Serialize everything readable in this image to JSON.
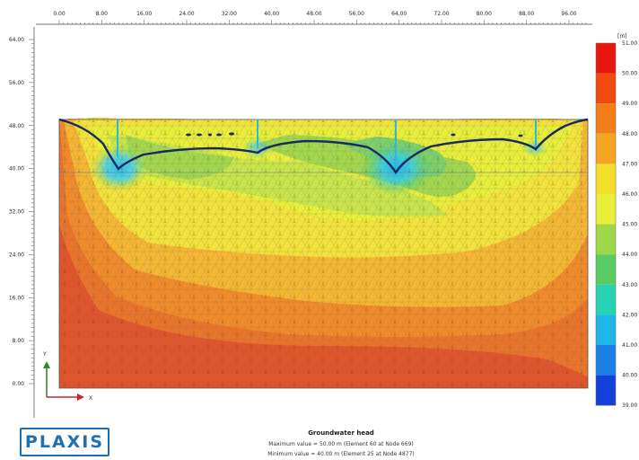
{
  "x_ticks": [
    "8.00",
    "16.00",
    "24.00",
    "32.00",
    "40.00",
    "48.00",
    "56.00",
    "64.00",
    "72.00",
    "80.00",
    "88.00",
    "96.00"
  ],
  "x_first_tick": "0.00",
  "y_ticks": [
    "64.00",
    "56.00",
    "48.00",
    "40.00",
    "32.00",
    "24.00",
    "16.00",
    "8.00",
    "0.00"
  ],
  "axis": {
    "y_label": "Y",
    "x_label": "X"
  },
  "legend": {
    "unit": "[m]",
    "values": [
      "51.00",
      "50.00",
      "49.00",
      "48.00",
      "47.00",
      "46.00",
      "45.00",
      "44.00",
      "43.00",
      "42.00",
      "41.00",
      "40.00",
      "39.00"
    ],
    "colors": [
      "#e8160f",
      "#f04a10",
      "#f27e1a",
      "#f5a51f",
      "#f2df2a",
      "#e8ee3a",
      "#9fd748",
      "#58cb63",
      "#27d2b2",
      "#1db6e7",
      "#1b80e6",
      "#1340d8",
      "#1a1ae0"
    ]
  },
  "info": {
    "title": "Groundwater head",
    "max_line": "Maximum value = 50.00 m (Element 60 at Node 669)",
    "min_line": "Minimum value = 40.00 m (Element 25 at Node 4877)"
  },
  "logo": {
    "text": "PLAXIS"
  },
  "colors": {
    "red": "#e2542a",
    "orange": "#f08a2a",
    "light_orange": "#f5b632",
    "yellow": "#f2e23a",
    "green": "#a2d74d",
    "teal": "#6fd3b0",
    "cyan": "#3ad0e8",
    "water_line": "#1a2a5e"
  }
}
